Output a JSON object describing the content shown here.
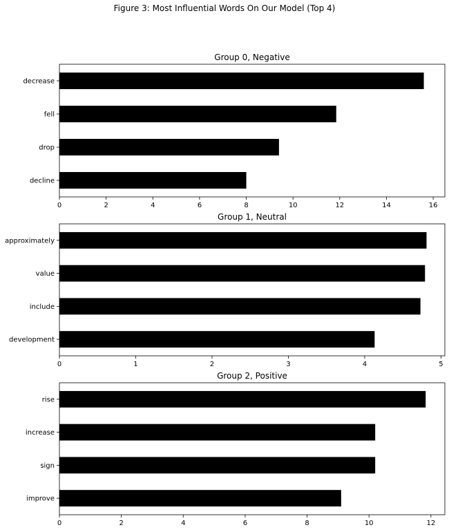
{
  "figure": {
    "suptitle": "Figure 3: Most Influential Words On Our Model (Top 4)"
  },
  "chart_data": [
    {
      "type": "bar",
      "orientation": "horizontal",
      "title": "Group 0, Negative",
      "categories": [
        "decrease",
        "fell",
        "drop",
        "decline"
      ],
      "values": [
        15.6,
        11.85,
        9.4,
        8.0
      ],
      "xlim": [
        0,
        16.5
      ],
      "xticks": [
        0,
        2,
        4,
        6,
        8,
        10,
        12,
        14,
        16
      ],
      "bar_color": "#000000",
      "grid": false
    },
    {
      "type": "bar",
      "orientation": "horizontal",
      "title": "Group 1, Neutral",
      "categories": [
        "approximately",
        "value",
        "include",
        "development"
      ],
      "values": [
        4.81,
        4.79,
        4.73,
        4.13
      ],
      "xlim": [
        0,
        5.05
      ],
      "xticks": [
        0,
        1,
        2,
        3,
        4,
        5
      ],
      "bar_color": "#000000",
      "grid": false
    },
    {
      "type": "bar",
      "orientation": "horizontal",
      "title": "Group 2, Positive",
      "categories": [
        "rise",
        "increase",
        "sign",
        "improve"
      ],
      "values": [
        11.83,
        10.2,
        10.2,
        9.1
      ],
      "xlim": [
        0,
        12.45
      ],
      "xticks": [
        0,
        2,
        4,
        6,
        8,
        10,
        12
      ],
      "bar_color": "#000000",
      "grid": false
    }
  ]
}
